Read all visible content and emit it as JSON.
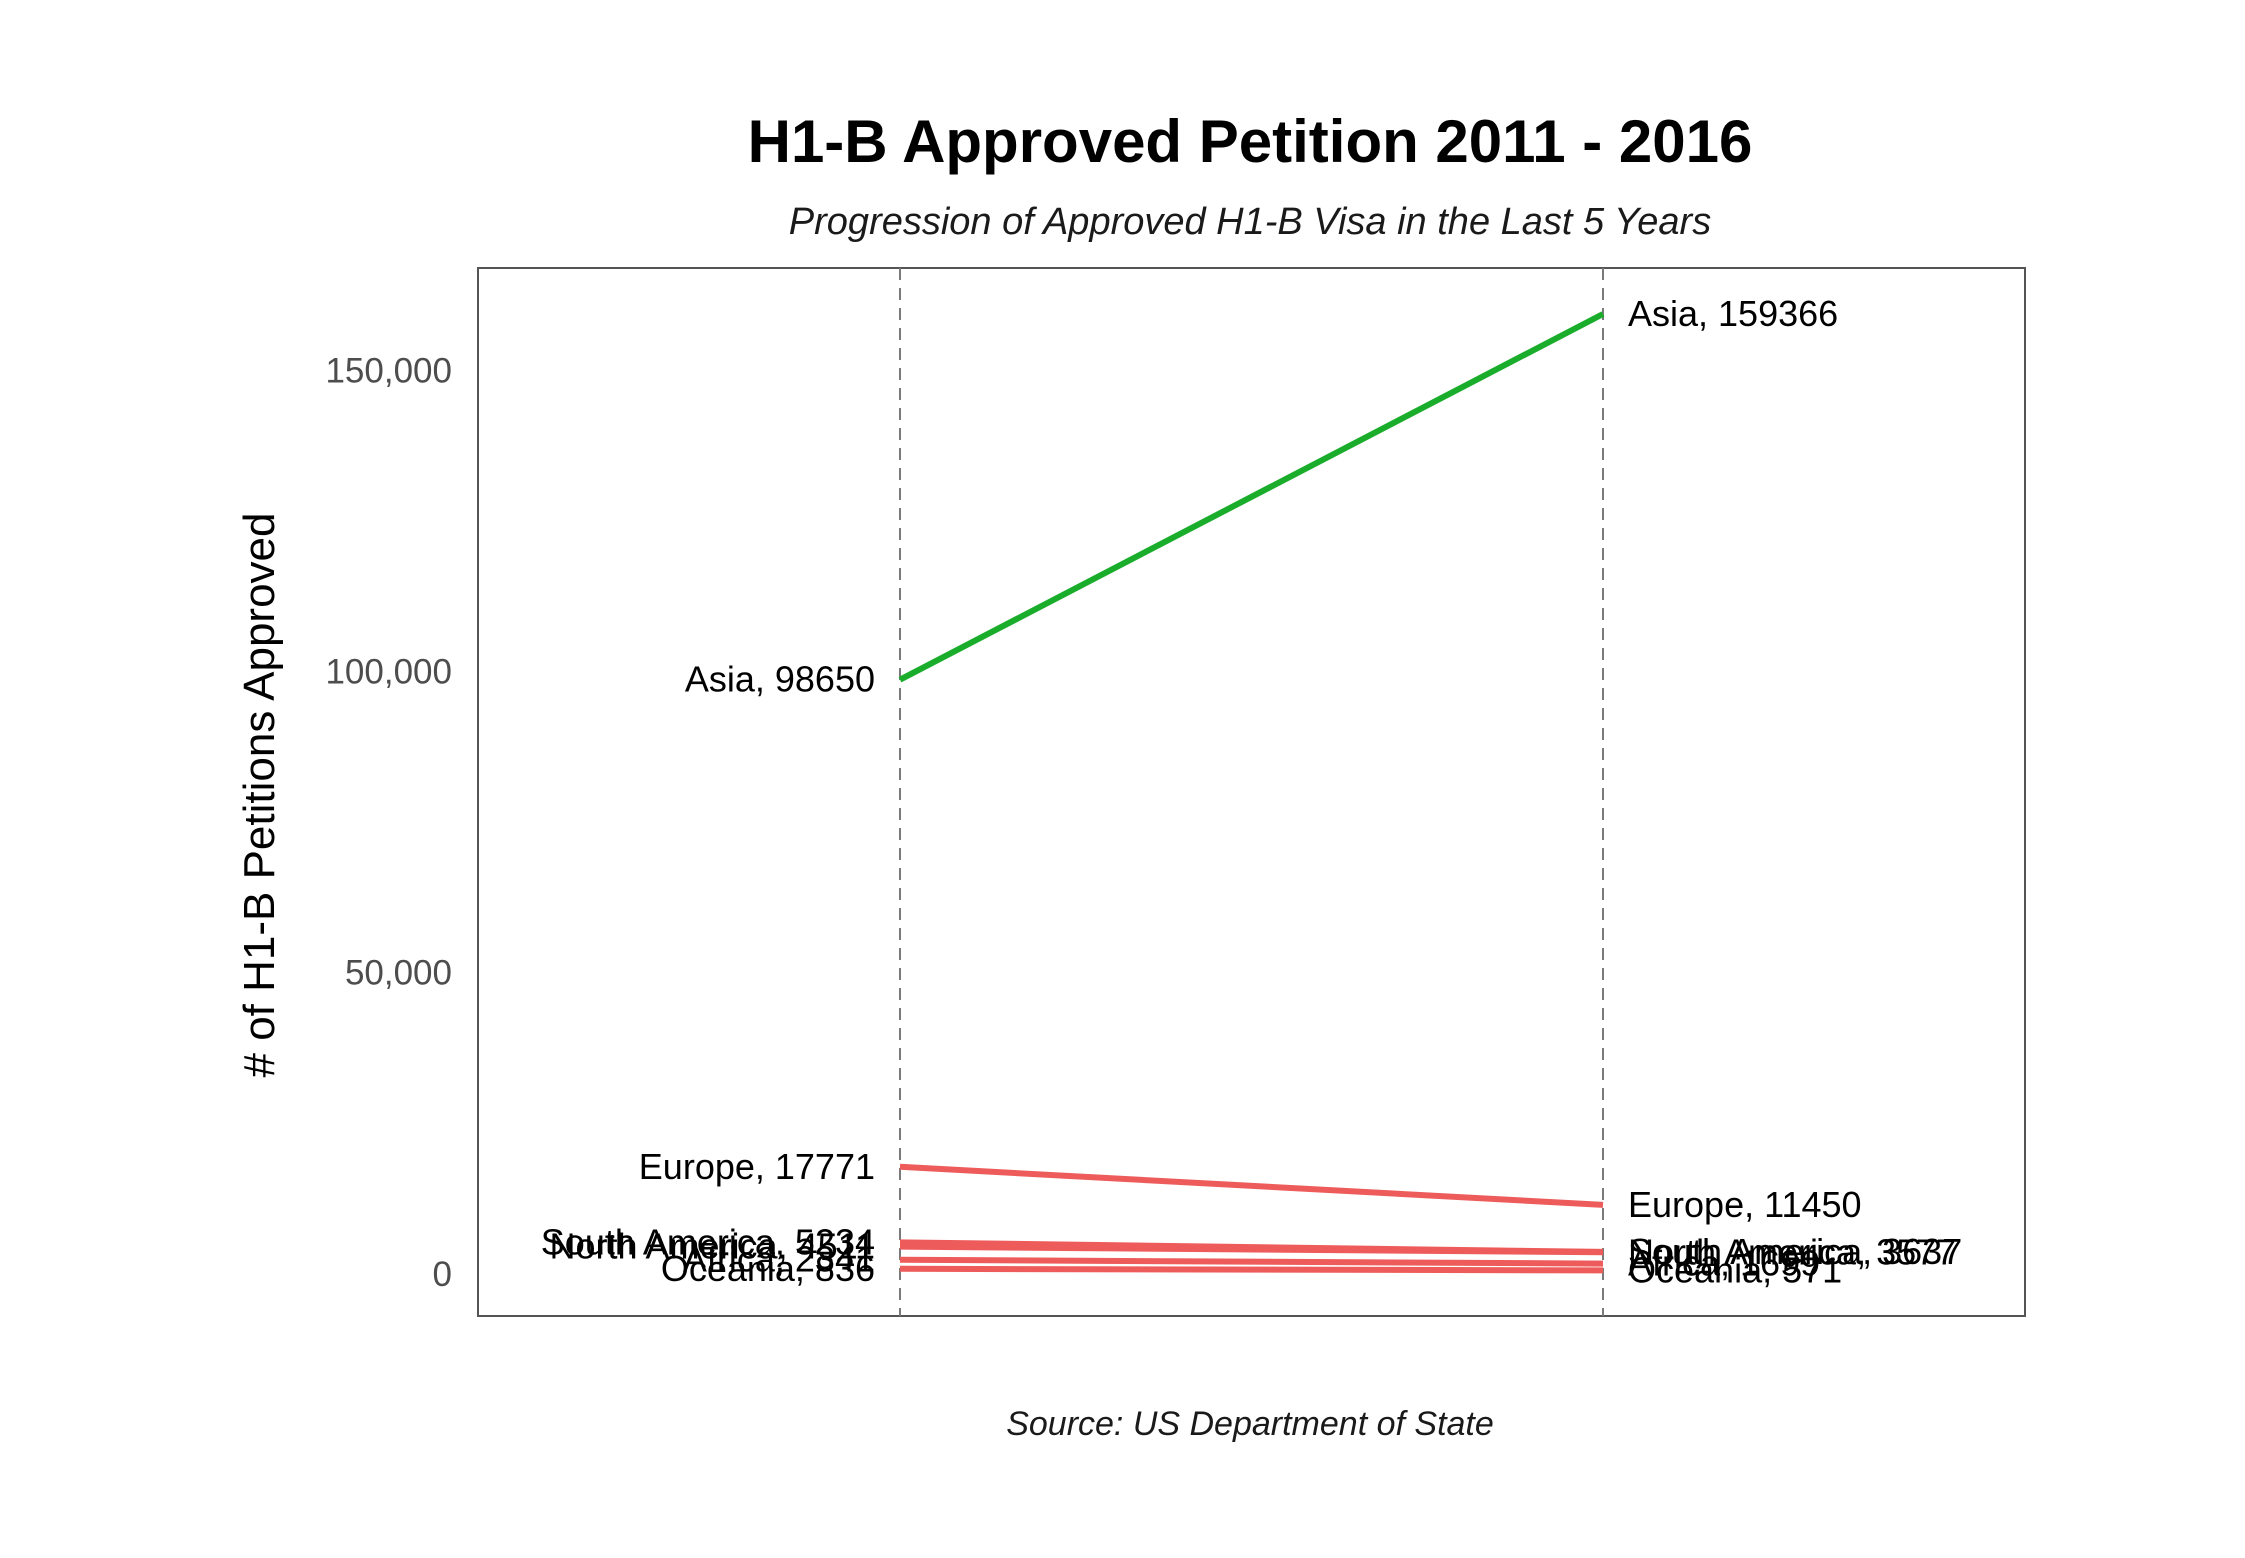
{
  "chart_data": {
    "type": "line",
    "title": "H1-B Approved Petition 2011 - 2016",
    "subtitle": "Progression of Approved H1-B Visa in the Last 5 Years",
    "caption": "Source: US Department of State",
    "xlabel": "",
    "ylabel": "# of H1-B Petitions Approved",
    "ylim": [
      -7000,
      167000
    ],
    "y_ticks": [
      0,
      50000,
      100000,
      150000
    ],
    "y_tick_labels": [
      "0",
      "50,000",
      "100,000",
      "150,000"
    ],
    "x": [
      2011,
      2016
    ],
    "grid": false,
    "legend": "none",
    "colors": {
      "increase": "#1aad2b",
      "decrease": "#ee5b5b"
    },
    "series": [
      {
        "name": "Asia",
        "values": [
          98650,
          159366
        ],
        "labels": [
          "Asia, 98650",
          "Asia, 159366"
        ],
        "trend": "increase"
      },
      {
        "name": "Europe",
        "values": [
          17771,
          11450
        ],
        "labels": [
          "Europe, 17771",
          "Europe, 11450"
        ],
        "trend": "decrease"
      },
      {
        "name": "South America",
        "values": [
          5234,
          3637
        ],
        "labels": [
          "South America, 5234",
          "South America, 3637"
        ],
        "trend": "decrease"
      },
      {
        "name": "North America",
        "values": [
          4511,
          3577
        ],
        "labels": [
          "North America, 4511",
          "North America, 3577"
        ],
        "trend": "decrease"
      },
      {
        "name": "Africa",
        "values": [
          2341,
          1699
        ],
        "labels": [
          "Africa, 2341",
          "Africa, 1699"
        ],
        "trend": "decrease"
      },
      {
        "name": "Oceania",
        "values": [
          836,
          571
        ],
        "labels": [
          "Oceania, 836",
          "Oceania, 571"
        ],
        "trend": "decrease"
      }
    ]
  }
}
